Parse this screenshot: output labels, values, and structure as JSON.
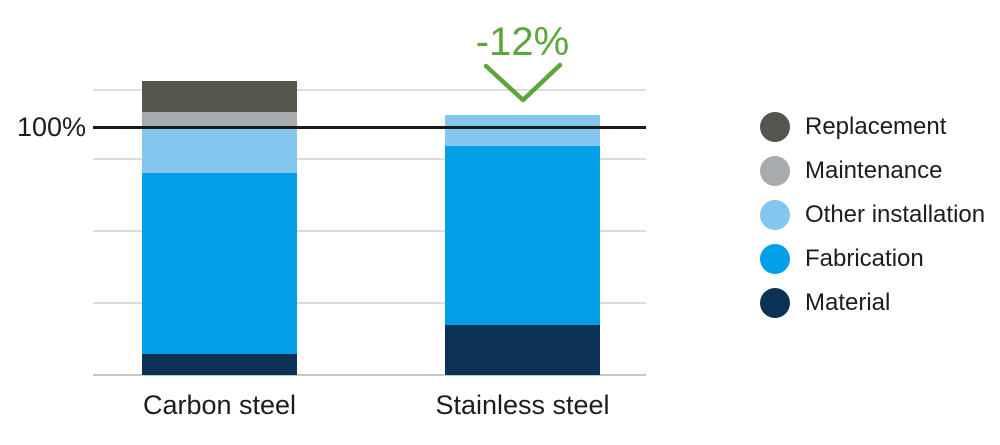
{
  "chart_data": {
    "type": "bar",
    "stacked": true,
    "title": "",
    "unit": "percent, indexed to 100% reference line",
    "categories": [
      "Carbon steel",
      "Stainless steel"
    ],
    "series": [
      {
        "name": "Material",
        "color": "#0b3155",
        "values": [
          8.5,
          20
        ]
      },
      {
        "name": "Fabrication",
        "color": "#009fe8",
        "values": [
          73,
          72.5
        ]
      },
      {
        "name": "Other installation",
        "color": "#85c6ef",
        "values": [
          18,
          12.5
        ]
      },
      {
        "name": "Maintenance",
        "color": "#a8abae",
        "values": [
          6.5,
          0
        ]
      },
      {
        "name": "Replacement",
        "color": "#56564f",
        "values": [
          12.5,
          0
        ]
      }
    ],
    "totals_pct": [
      118.5,
      105
    ],
    "reference_line": {
      "label": "100%",
      "value": 100
    },
    "annotation": {
      "text": "-12%",
      "applies_to": "Stainless steel",
      "color": "#5ca73b"
    },
    "gridlines_pct": [
      29,
      58,
      87,
      115
    ],
    "legend": {
      "position": "right",
      "order_top_to_bottom": [
        "Replacement",
        "Maintenance",
        "Other installation",
        "Fabrication",
        "Material"
      ]
    }
  },
  "style": {
    "background": "#ffffff",
    "text_color": "#1d1d1b",
    "gridline_color": "#dcdcdc",
    "baseline_color": "#c6c6c6",
    "reference_line_color": "#1a1a1a"
  }
}
